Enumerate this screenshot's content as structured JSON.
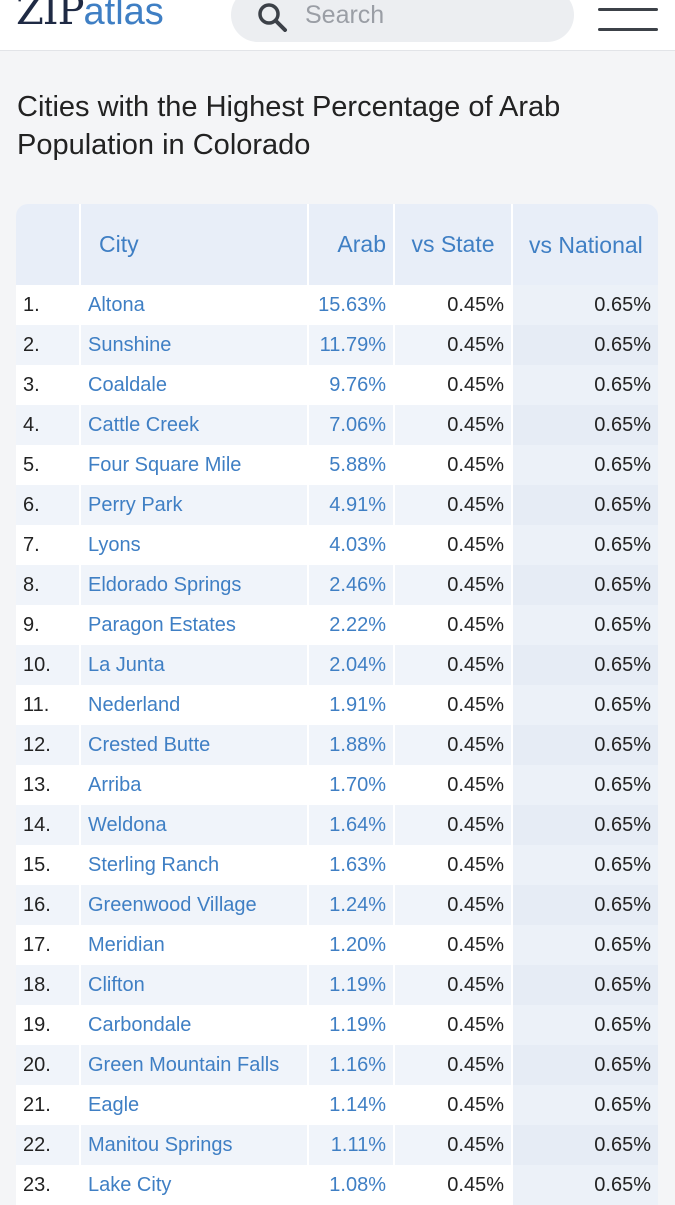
{
  "header": {
    "logo_zip": "ZIP",
    "logo_atlas": "atlas",
    "search_placeholder": "Search",
    "search_icon": "search-icon",
    "menu_icon": "hamburger-menu-icon"
  },
  "page": {
    "title": "Cities with the Highest Percentage of Arab Population in Colorado"
  },
  "table": {
    "columns": [
      "",
      "City",
      "Arab",
      "vs State",
      "vs National"
    ],
    "rows": [
      {
        "rank": "1.",
        "city": "Altona",
        "arab": "15.63%",
        "vs_state": "0.45%",
        "vs_national": "0.65%"
      },
      {
        "rank": "2.",
        "city": "Sunshine",
        "arab": "11.79%",
        "vs_state": "0.45%",
        "vs_national": "0.65%"
      },
      {
        "rank": "3.",
        "city": "Coaldale",
        "arab": "9.76%",
        "vs_state": "0.45%",
        "vs_national": "0.65%"
      },
      {
        "rank": "4.",
        "city": "Cattle Creek",
        "arab": "7.06%",
        "vs_state": "0.45%",
        "vs_national": "0.65%"
      },
      {
        "rank": "5.",
        "city": "Four Square Mile",
        "arab": "5.88%",
        "vs_state": "0.45%",
        "vs_national": "0.65%"
      },
      {
        "rank": "6.",
        "city": "Perry Park",
        "arab": "4.91%",
        "vs_state": "0.45%",
        "vs_national": "0.65%"
      },
      {
        "rank": "7.",
        "city": "Lyons",
        "arab": "4.03%",
        "vs_state": "0.45%",
        "vs_national": "0.65%"
      },
      {
        "rank": "8.",
        "city": "Eldorado Springs",
        "arab": "2.46%",
        "vs_state": "0.45%",
        "vs_national": "0.65%"
      },
      {
        "rank": "9.",
        "city": "Paragon Estates",
        "arab": "2.22%",
        "vs_state": "0.45%",
        "vs_national": "0.65%"
      },
      {
        "rank": "10.",
        "city": "La Junta",
        "arab": "2.04%",
        "vs_state": "0.45%",
        "vs_national": "0.65%"
      },
      {
        "rank": "11.",
        "city": "Nederland",
        "arab": "1.91%",
        "vs_state": "0.45%",
        "vs_national": "0.65%"
      },
      {
        "rank": "12.",
        "city": "Crested Butte",
        "arab": "1.88%",
        "vs_state": "0.45%",
        "vs_national": "0.65%"
      },
      {
        "rank": "13.",
        "city": "Arriba",
        "arab": "1.70%",
        "vs_state": "0.45%",
        "vs_national": "0.65%"
      },
      {
        "rank": "14.",
        "city": "Weldona",
        "arab": "1.64%",
        "vs_state": "0.45%",
        "vs_national": "0.65%"
      },
      {
        "rank": "15.",
        "city": "Sterling Ranch",
        "arab": "1.63%",
        "vs_state": "0.45%",
        "vs_national": "0.65%"
      },
      {
        "rank": "16.",
        "city": "Greenwood Village",
        "arab": "1.24%",
        "vs_state": "0.45%",
        "vs_national": "0.65%"
      },
      {
        "rank": "17.",
        "city": "Meridian",
        "arab": "1.20%",
        "vs_state": "0.45%",
        "vs_national": "0.65%"
      },
      {
        "rank": "18.",
        "city": "Clifton",
        "arab": "1.19%",
        "vs_state": "0.45%",
        "vs_national": "0.65%"
      },
      {
        "rank": "19.",
        "city": "Carbondale",
        "arab": "1.19%",
        "vs_state": "0.45%",
        "vs_national": "0.65%"
      },
      {
        "rank": "20.",
        "city": "Green Mountain Falls",
        "arab": "1.16%",
        "vs_state": "0.45%",
        "vs_national": "0.65%"
      },
      {
        "rank": "21.",
        "city": "Eagle",
        "arab": "1.14%",
        "vs_state": "0.45%",
        "vs_national": "0.65%"
      },
      {
        "rank": "22.",
        "city": "Manitou Springs",
        "arab": "1.11%",
        "vs_state": "0.45%",
        "vs_national": "0.65%"
      },
      {
        "rank": "23.",
        "city": "Lake City",
        "arab": "1.08%",
        "vs_state": "0.45%",
        "vs_national": "0.65%"
      }
    ]
  },
  "colors": {
    "accent": "#3f7fc4",
    "header_bg": "#e8eef8",
    "row_alt": "#f0f4fa"
  }
}
